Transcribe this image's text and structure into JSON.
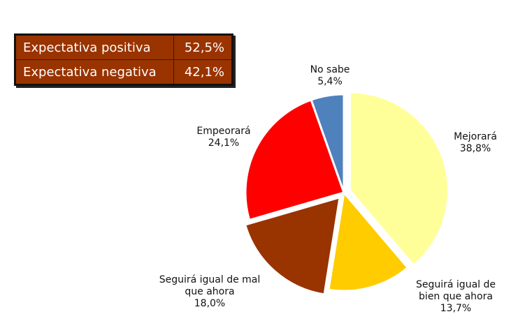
{
  "summary_table": [
    {
      "label": "Expectativa positiva",
      "value": "52,5%"
    },
    {
      "label": "Expectativa negativa",
      "value": "42,1%"
    }
  ],
  "chart_data": {
    "type": "pie",
    "title": "",
    "start": "top",
    "direction": "clockwise",
    "slices": [
      {
        "label": [
          "Mejorará"
        ],
        "value": 38.8,
        "display": "38,8%",
        "color": "#FFFF99",
        "exploded": true
      },
      {
        "label": [
          "Seguirá igual de",
          "bien que ahora"
        ],
        "value": 13.7,
        "display": "13,7%",
        "color": "#FFCC00",
        "exploded": false
      },
      {
        "label": [
          "Seguirá igual de mal",
          "que ahora"
        ],
        "value": 18.0,
        "display": "18,0%",
        "color": "#993300",
        "exploded": true
      },
      {
        "label": [
          "Empeorará"
        ],
        "value": 24.1,
        "display": "24,1%",
        "color": "#FF0000",
        "exploded": false
      },
      {
        "label": [
          "No sabe"
        ],
        "value": 5.4,
        "display": "5,4%",
        "color": "#4F81BD",
        "exploded": false
      }
    ]
  }
}
